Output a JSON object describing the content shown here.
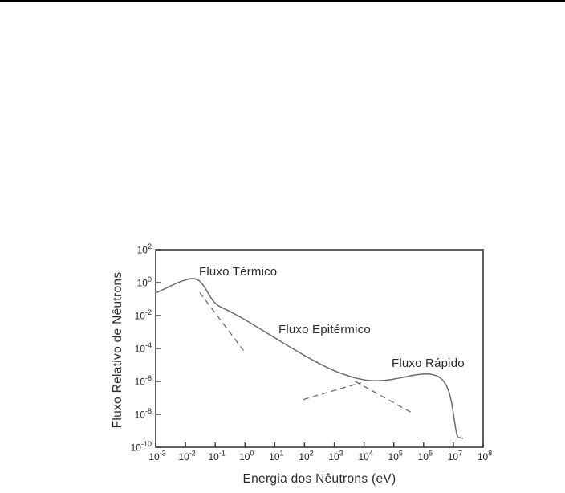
{
  "page": {
    "background_color": "#ffffff",
    "top_rule_color": "#000000"
  },
  "chart_data": {
    "type": "line",
    "title": "",
    "xlabel": "Energia dos Nêutrons (eV)",
    "ylabel": "Fluxo Relativo de Nêutrons",
    "x_scale": "log10",
    "y_scale": "log10",
    "x_range_exponents": [
      -3,
      8
    ],
    "y_range_exponents": [
      -10,
      2
    ],
    "x_tick_exponents": [
      -3,
      -2,
      -1,
      0,
      1,
      2,
      3,
      4,
      5,
      6,
      7,
      8
    ],
    "y_tick_exponents": [
      2,
      0,
      -2,
      -4,
      -6,
      -8,
      -10
    ],
    "tick_base": "10",
    "grid": false,
    "legend": null,
    "axis_color": "#3a3a3a",
    "tick_label_color": "#222222",
    "annotations": [
      {
        "id": "thermal",
        "text": "Fluxo Térmico",
        "logx": -1.55,
        "logy": 1.06
      },
      {
        "id": "epithermal",
        "text": "Fluxo Epitérmico",
        "logx": 1.125,
        "logy": -2.45
      },
      {
        "id": "fast",
        "text": "Fluxo Rápido",
        "logx": 4.93,
        "logy": -4.5
      }
    ],
    "series": [
      {
        "name": "neutron-flux-spectrum",
        "style": "solid",
        "color": "#6b6b6b",
        "points_logxy": [
          [
            -3.0,
            -0.63
          ],
          [
            -2.8,
            -0.46
          ],
          [
            -2.6,
            -0.29
          ],
          [
            -2.4,
            -0.12
          ],
          [
            -2.2,
            0.04
          ],
          [
            -2.0,
            0.16
          ],
          [
            -1.85,
            0.23
          ],
          [
            -1.7,
            0.24
          ],
          [
            -1.55,
            0.12
          ],
          [
            -1.45,
            -0.05
          ],
          [
            -1.35,
            -0.3
          ],
          [
            -1.25,
            -0.6
          ],
          [
            -1.15,
            -0.9
          ],
          [
            -1.05,
            -1.15
          ],
          [
            -0.95,
            -1.32
          ],
          [
            -0.85,
            -1.45
          ],
          [
            -0.7,
            -1.58
          ],
          [
            -0.5,
            -1.76
          ],
          [
            -0.25,
            -2.0
          ],
          [
            0.0,
            -2.25
          ],
          [
            0.5,
            -2.8
          ],
          [
            1.0,
            -3.35
          ],
          [
            1.5,
            -3.9
          ],
          [
            2.0,
            -4.43
          ],
          [
            2.5,
            -4.92
          ],
          [
            3.0,
            -5.35
          ],
          [
            3.3,
            -5.56
          ],
          [
            3.6,
            -5.74
          ],
          [
            3.9,
            -5.87
          ],
          [
            4.15,
            -5.94
          ],
          [
            4.4,
            -5.96
          ],
          [
            4.7,
            -5.93
          ],
          [
            5.0,
            -5.86
          ],
          [
            5.3,
            -5.76
          ],
          [
            5.6,
            -5.65
          ],
          [
            5.85,
            -5.58
          ],
          [
            6.05,
            -5.55
          ],
          [
            6.25,
            -5.57
          ],
          [
            6.45,
            -5.67
          ],
          [
            6.6,
            -5.85
          ],
          [
            6.75,
            -6.2
          ],
          [
            6.87,
            -6.75
          ],
          [
            6.95,
            -7.4
          ],
          [
            7.02,
            -8.2
          ],
          [
            7.08,
            -8.9
          ],
          [
            7.13,
            -9.3
          ],
          [
            7.2,
            -9.42
          ],
          [
            7.32,
            -9.45
          ]
        ]
      },
      {
        "name": "thermal-maxwellian-extrapolation",
        "style": "dashed",
        "color": "#6b6b6b",
        "points_logxy": [
          [
            -1.52,
            -0.6
          ],
          [
            -0.05,
            -4.12
          ]
        ]
      },
      {
        "name": "fast-flux-extrapolation",
        "style": "dashed",
        "color": "#6b6b6b",
        "points_logxy": [
          [
            1.96,
            -7.1
          ],
          [
            3.9,
            -6.08
          ]
        ]
      },
      {
        "name": "epithermal-1-over-E-extrapolation",
        "style": "dashed",
        "color": "#6b6b6b",
        "points_logxy": [
          [
            3.7,
            -6.0
          ],
          [
            5.67,
            -7.97
          ]
        ]
      }
    ]
  }
}
